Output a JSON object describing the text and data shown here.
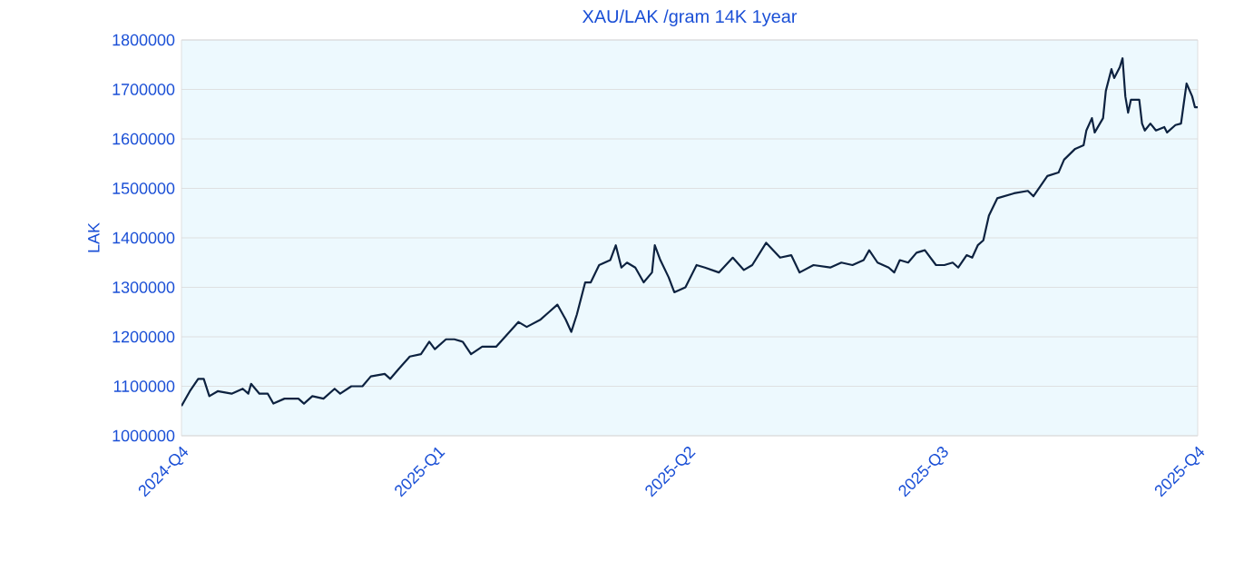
{
  "chart_data": {
    "type": "line",
    "title": "XAU/LAK /gram 14K 1year",
    "ylabel": "LAK",
    "xlim": [
      "2024-10-01",
      "2025-10-01"
    ],
    "xticks": [
      {
        "value": "2024-10-01",
        "label": "2024-Q4"
      },
      {
        "value": "2025-01-01",
        "label": "2025-Q1"
      },
      {
        "value": "2025-04-01",
        "label": "2025-Q2"
      },
      {
        "value": "2025-07-01",
        "label": "2025-Q3"
      },
      {
        "value": "2025-10-01",
        "label": "2025-Q4"
      }
    ],
    "ylim": [
      1000000,
      1800000
    ],
    "yticks": [
      1000000,
      1100000,
      1200000,
      1300000,
      1400000,
      1500000,
      1600000,
      1700000,
      1800000
    ],
    "grid": "y",
    "marker": "none",
    "line_style": "solid",
    "series": [
      {
        "color": "#0d2240",
        "x": [
          "2024-10-01",
          "2024-10-04",
          "2024-10-07",
          "2024-10-09",
          "2024-10-11",
          "2024-10-14",
          "2024-10-19",
          "2024-10-23",
          "2024-10-25",
          "2024-10-26",
          "2024-10-29",
          "2024-11-01",
          "2024-11-03",
          "2024-11-07",
          "2024-11-12",
          "2024-11-14",
          "2024-11-17",
          "2024-11-21",
          "2024-11-25",
          "2024-11-27",
          "2024-12-01",
          "2024-12-05",
          "2024-12-08",
          "2024-12-13",
          "2024-12-15",
          "2024-12-18",
          "2024-12-22",
          "2024-12-26",
          "2024-12-29",
          "2024-12-31",
          "2025-01-04",
          "2025-01-07",
          "2025-01-10",
          "2025-01-13",
          "2025-01-17",
          "2025-01-20",
          "2025-01-22",
          "2025-01-26",
          "2025-01-30",
          "2025-02-02",
          "2025-02-07",
          "2025-02-10",
          "2025-02-13",
          "2025-02-16",
          "2025-02-18",
          "2025-02-20",
          "2025-02-23",
          "2025-02-25",
          "2025-02-28",
          "2025-03-04",
          "2025-03-06",
          "2025-03-08",
          "2025-03-10",
          "2025-03-13",
          "2025-03-16",
          "2025-03-19",
          "2025-03-20",
          "2025-03-22",
          "2025-03-25",
          "2025-03-27",
          "2025-03-31",
          "2025-04-04",
          "2025-04-07",
          "2025-04-12",
          "2025-04-17",
          "2025-04-21",
          "2025-04-24",
          "2025-04-29",
          "2025-05-04",
          "2025-05-08",
          "2025-05-11",
          "2025-05-16",
          "2025-05-22",
          "2025-05-26",
          "2025-05-30",
          "2025-06-03",
          "2025-06-05",
          "2025-06-08",
          "2025-06-12",
          "2025-06-14",
          "2025-06-16",
          "2025-06-19",
          "2025-06-22",
          "2025-06-25",
          "2025-06-29",
          "2025-07-02",
          "2025-07-05",
          "2025-07-07",
          "2025-07-10",
          "2025-07-12",
          "2025-07-14",
          "2025-07-16",
          "2025-07-18",
          "2025-07-21",
          "2025-07-27",
          "2025-08-01",
          "2025-08-03",
          "2025-08-08",
          "2025-08-12",
          "2025-08-14",
          "2025-08-18",
          "2025-08-21",
          "2025-08-22",
          "2025-08-24",
          "2025-08-25",
          "2025-08-28",
          "2025-08-29",
          "2025-08-31",
          "2025-09-01",
          "2025-09-03",
          "2025-09-04",
          "2025-09-05",
          "2025-09-06",
          "2025-09-07",
          "2025-09-10",
          "2025-09-11",
          "2025-09-12",
          "2025-09-14",
          "2025-09-16",
          "2025-09-19",
          "2025-09-20",
          "2025-09-23",
          "2025-09-25",
          "2025-09-26",
          "2025-09-27",
          "2025-09-29",
          "2025-09-30",
          "2025-10-01"
        ],
        "values": [
          1060000,
          1090000,
          1115000,
          1115000,
          1080000,
          1090000,
          1085000,
          1095000,
          1085000,
          1105000,
          1085000,
          1085000,
          1065000,
          1075000,
          1075000,
          1065000,
          1080000,
          1075000,
          1095000,
          1085000,
          1100000,
          1100000,
          1120000,
          1125000,
          1115000,
          1135000,
          1160000,
          1165000,
          1190000,
          1175000,
          1195000,
          1195000,
          1190000,
          1165000,
          1180000,
          1180000,
          1180000,
          1205000,
          1230000,
          1220000,
          1235000,
          1250000,
          1265000,
          1235000,
          1210000,
          1245000,
          1310000,
          1310000,
          1345000,
          1355000,
          1385000,
          1340000,
          1350000,
          1340000,
          1310000,
          1330000,
          1385000,
          1355000,
          1320000,
          1290000,
          1300000,
          1345000,
          1340000,
          1330000,
          1360000,
          1335000,
          1345000,
          1390000,
          1360000,
          1365000,
          1330000,
          1345000,
          1340000,
          1350000,
          1345000,
          1355000,
          1375000,
          1350000,
          1340000,
          1330000,
          1355000,
          1350000,
          1370000,
          1375000,
          1345000,
          1345000,
          1350000,
          1340000,
          1365000,
          1360000,
          1385000,
          1395000,
          1445000,
          1480000,
          1490000,
          1495000,
          1484000,
          1525000,
          1532000,
          1558000,
          1580000,
          1587000,
          1617000,
          1642000,
          1613000,
          1642000,
          1697000,
          1741000,
          1723000,
          1745000,
          1763000,
          1686000,
          1653000,
          1679000,
          1679000,
          1631000,
          1617000,
          1631000,
          1617000,
          1624000,
          1613000,
          1628000,
          1631000,
          1672000,
          1712000,
          1686000,
          1664000,
          1664000
        ]
      }
    ]
  }
}
